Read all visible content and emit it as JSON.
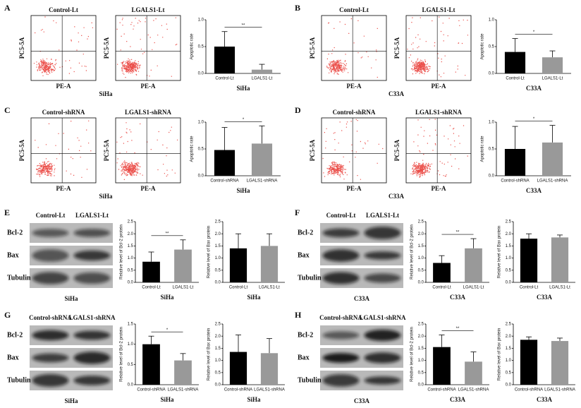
{
  "panels": [
    {
      "label": "A",
      "plots": [
        "Control-Lt",
        "LGALS1-Lt"
      ],
      "y_axis": "PC5-5A",
      "x_axis": "PE-A",
      "cell_line": "SiHa"
    },
    {
      "label": "B",
      "plots": [
        "Control-Lt",
        "LGALS1-Lt"
      ],
      "y_axis": "PC5-5A",
      "x_axis": "PE-A",
      "cell_line": "C33A"
    },
    {
      "label": "C",
      "plots": [
        "Control-shRNA",
        "LGALS1-shRNA"
      ],
      "y_axis": "PC5-5A",
      "x_axis": "PE-A",
      "cell_line": "SiHa"
    },
    {
      "label": "D",
      "plots": [
        "Control-shRNA",
        "LGALS1-shRNA"
      ],
      "y_axis": "PC5-5A",
      "x_axis": "PE-A",
      "cell_line": "C33A"
    },
    {
      "label": "E",
      "lanes": [
        "Control-Lt",
        "LGALS1-Lt"
      ],
      "bands": [
        "Bcl-2",
        "Bax",
        "Tubulin"
      ],
      "cell_line": "SiHa"
    },
    {
      "label": "F",
      "lanes": [
        "Control-Lt",
        "LGALS1-Lt"
      ],
      "bands": [
        "Bcl-2",
        "Bax",
        "Tubulin"
      ],
      "cell_line": "C33A"
    },
    {
      "label": "G",
      "lanes": [
        "Control-shRNA",
        "LGALS1-shRNA"
      ],
      "bands": [
        "Bcl-2",
        "Bax",
        "Tubulin"
      ],
      "cell_line": "SiHa"
    },
    {
      "label": "H",
      "lanes": [
        "Control-shRNA",
        "LGALS1-shRNA"
      ],
      "bands": [
        "Bcl-2",
        "Bax",
        "Tubulin"
      ],
      "cell_line": "C33A"
    }
  ],
  "chart_data": [
    {
      "type": "bar",
      "y_label": "Apoptotic rate",
      "x_label": "SiHa",
      "categories": [
        "Control-Lt",
        "LGALS1-Lt"
      ],
      "values": [
        0.5,
        0.07
      ],
      "errors": [
        0.28,
        0.1
      ],
      "colors": [
        "#000000",
        "#999999"
      ],
      "ylim": [
        0,
        1
      ],
      "yticks": [
        {
          "value": 0,
          "label": "0.0"
        },
        0.5,
        {
          "value": 1,
          "label": "1.0"
        }
      ],
      "significance": "**"
    },
    {
      "type": "bar",
      "y_label": "Apoptotic rate",
      "x_label": "C33A",
      "categories": [
        "Control-Lt",
        "LGALS1-Lt"
      ],
      "values": [
        0.4,
        0.3
      ],
      "errors": [
        0.25,
        0.12
      ],
      "colors": [
        "#000000",
        "#999999"
      ],
      "ylim": [
        0,
        1
      ],
      "yticks": [
        {
          "value": 0,
          "label": "0.0"
        },
        0.5,
        {
          "value": 1,
          "label": "1.0"
        }
      ],
      "significance": "*"
    },
    {
      "type": "bar",
      "y_label": "Apoptotic rate",
      "x_label": "SiHa",
      "categories": [
        "Control-shRNA",
        "LGALS1-shRNA"
      ],
      "values": [
        0.48,
        0.6
      ],
      "errors": [
        0.42,
        0.33
      ],
      "colors": [
        "#000000",
        "#999999"
      ],
      "ylim": [
        0,
        1
      ],
      "yticks": [
        {
          "value": 0,
          "label": "0.0"
        },
        0.5,
        {
          "value": 1,
          "label": "1.0"
        }
      ],
      "significance": "*"
    },
    {
      "type": "bar",
      "y_label": "Apoptotic rate",
      "x_label": "C33A",
      "categories": [
        "Control-shRNA",
        "LGALS1-shRNA"
      ],
      "values": [
        0.5,
        0.62
      ],
      "errors": [
        0.42,
        0.32
      ],
      "colors": [
        "#000000",
        "#999999"
      ],
      "ylim": [
        0,
        1
      ],
      "yticks": [
        {
          "value": 0,
          "label": "0.0"
        },
        0.5,
        {
          "value": 1,
          "label": "1.0"
        }
      ],
      "significance": "*"
    },
    {
      "type": "bar",
      "y_label": "Relative level of Bcl-2 protein",
      "x_label": "SiHa",
      "categories": [
        "Control-Lt",
        "LGALS1-Lt"
      ],
      "values": [
        0.85,
        1.35
      ],
      "errors": [
        0.4,
        0.4
      ],
      "colors": [
        "#000000",
        "#999999"
      ],
      "ylim": [
        0,
        2.5
      ],
      "yticks": [
        {
          "value": 0,
          "label": "0.0"
        },
        0.5,
        {
          "value": 1,
          "label": "1.0"
        },
        1.5,
        {
          "value": 2,
          "label": "2.0"
        },
        2.5
      ],
      "significance": "**"
    },
    {
      "type": "bar",
      "y_label": "Relative level of Bax protein",
      "x_label": "SiHa",
      "categories": [
        "Control-Lt",
        "LGALS1-Lt"
      ],
      "values": [
        1.4,
        1.5
      ],
      "errors": [
        0.6,
        0.5
      ],
      "colors": [
        "#000000",
        "#999999"
      ],
      "ylim": [
        0,
        2.5
      ],
      "yticks": [
        {
          "value": 0,
          "label": "0.0"
        },
        0.5,
        {
          "value": 1,
          "label": "1.0"
        },
        1.5,
        {
          "value": 2,
          "label": "2.0"
        },
        2.5
      ]
    },
    {
      "type": "bar",
      "y_label": "Relative level of Bcl-2 protein",
      "x_label": "C33A",
      "categories": [
        "Control-Lt",
        "LGALS1-Lt"
      ],
      "values": [
        0.8,
        1.4
      ],
      "errors": [
        0.3,
        0.4
      ],
      "colors": [
        "#000000",
        "#999999"
      ],
      "ylim": [
        0,
        2.5
      ],
      "yticks": [
        {
          "value": 0,
          "label": "0.0"
        },
        0.5,
        {
          "value": 1,
          "label": "1.0"
        },
        1.5,
        {
          "value": 2,
          "label": "2.0"
        },
        2.5
      ],
      "significance": "**"
    },
    {
      "type": "bar",
      "y_label": "Relative level of Bax protein",
      "x_label": "C33A",
      "categories": [
        "Control-Lt",
        "LGALS1-Lt"
      ],
      "values": [
        1.8,
        1.85
      ],
      "errors": [
        0.2,
        0.1
      ],
      "colors": [
        "#000000",
        "#999999"
      ],
      "ylim": [
        0,
        2.5
      ],
      "yticks": [
        {
          "value": 0,
          "label": "0.0"
        },
        0.5,
        {
          "value": 1,
          "label": "1.0"
        },
        1.5,
        {
          "value": 2,
          "label": "2.0"
        },
        2.5
      ]
    },
    {
      "type": "bar",
      "y_label": "Relative level of Bcl-2 protein",
      "x_label": "SiHa",
      "categories": [
        "Control-shRNA",
        "LGALS1-shRNA"
      ],
      "values": [
        1.0,
        0.6
      ],
      "errors": [
        0.2,
        0.17
      ],
      "colors": [
        "#000000",
        "#999999"
      ],
      "ylim": [
        0,
        1.5
      ],
      "yticks": [
        {
          "value": 0,
          "label": "0.0"
        },
        0.5,
        {
          "value": 1,
          "label": "1.0"
        },
        1.5
      ],
      "significance": "*"
    },
    {
      "type": "bar",
      "y_label": "Relative level of Bax protein",
      "x_label": "SiHa",
      "categories": [
        "Control-shRNA",
        "LGALS1-shRNA"
      ],
      "values": [
        1.35,
        1.3
      ],
      "errors": [
        0.7,
        0.6
      ],
      "colors": [
        "#000000",
        "#999999"
      ],
      "ylim": [
        0,
        2.5
      ],
      "yticks": [
        {
          "value": 0,
          "label": "0.0"
        },
        0.5,
        {
          "value": 1,
          "label": "1.0"
        },
        1.5,
        {
          "value": 2,
          "label": "2.0"
        },
        2.5
      ]
    },
    {
      "type": "bar",
      "y_label": "Relative level of Bcl-2 protein",
      "x_label": "C33A",
      "categories": [
        "Control-shRNA",
        "LGALS1-shRNA"
      ],
      "values": [
        1.55,
        0.95
      ],
      "errors": [
        0.5,
        0.4
      ],
      "colors": [
        "#000000",
        "#999999"
      ],
      "ylim": [
        0,
        2.5
      ],
      "yticks": [
        {
          "value": 0,
          "label": "0.0"
        },
        0.5,
        {
          "value": 1,
          "label": "1.0"
        },
        1.5,
        {
          "value": 2,
          "label": "2.0"
        },
        2.5
      ],
      "significance": "**"
    },
    {
      "type": "bar",
      "y_label": "Relative level of Bax protein",
      "x_label": "C33A",
      "categories": [
        "Control-shRNA",
        "LGALS1-shRNA"
      ],
      "values": [
        1.85,
        1.8
      ],
      "errors": [
        0.12,
        0.12
      ],
      "colors": [
        "#000000",
        "#999999"
      ],
      "ylim": [
        0,
        2.5
      ],
      "yticks": [
        {
          "value": 0,
          "label": "0.0"
        },
        0.5,
        {
          "value": 1,
          "label": "1.0"
        },
        1.5,
        {
          "value": 2,
          "label": "2.0"
        },
        2.5
      ]
    }
  ]
}
